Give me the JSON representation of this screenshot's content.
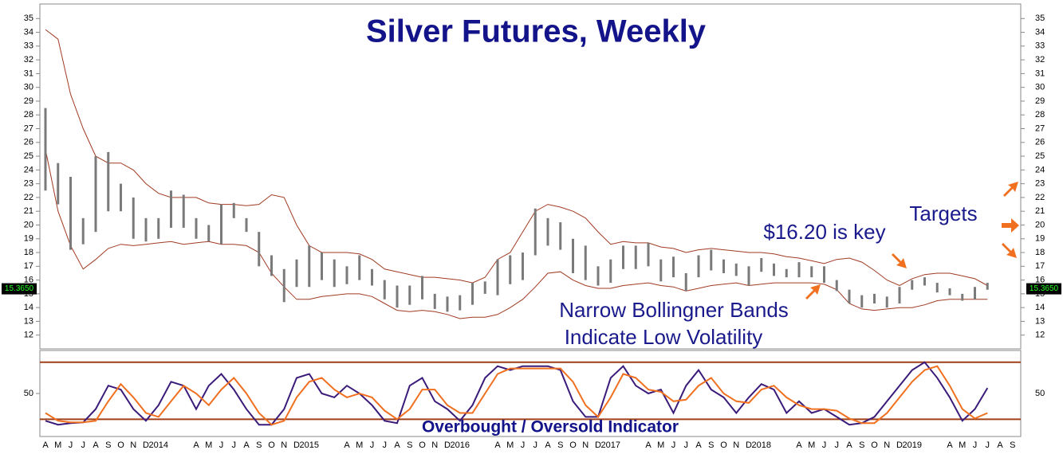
{
  "chart_data": [
    {
      "type": "ohlc",
      "title": "Silver Futures, Weekly",
      "categories": [
        "A",
        "M",
        "J",
        "J",
        "A",
        "S",
        "O",
        "N",
        "D",
        "2014",
        null,
        null,
        "A",
        "M",
        "J",
        "J",
        "A",
        "S",
        "O",
        "N",
        "D",
        "2015",
        null,
        null,
        "A",
        "M",
        "J",
        "J",
        "A",
        "S",
        "O",
        "N",
        "D",
        "2016",
        null,
        null,
        "A",
        "M",
        "J",
        "J",
        "A",
        "S",
        "O",
        "N",
        "D",
        "2017",
        null,
        null,
        "A",
        "M",
        "J",
        "J",
        "A",
        "S",
        "O",
        "N",
        "D",
        "2018",
        null,
        null,
        "A",
        "M",
        "J",
        "J",
        "A",
        "S",
        "O",
        "N",
        "D",
        "2019",
        null,
        null,
        "A",
        "M",
        "J",
        "J",
        "A",
        "S"
      ],
      "high": [
        28.5,
        24.5,
        23.5,
        20.5,
        25.0,
        25.3,
        23.0,
        22.0,
        20.5,
        20.5,
        22.5,
        22.2,
        20.5,
        20.0,
        21.5,
        21.6,
        20.5,
        19.5,
        17.8,
        16.8,
        17.5,
        18.5,
        18.0,
        17.5,
        17.0,
        17.8,
        16.8,
        16.0,
        15.6,
        15.6,
        16.3,
        15.0,
        14.8,
        14.9,
        15.8,
        15.9,
        17.5,
        17.8,
        18.0,
        21.2,
        20.5,
        20.2,
        19.0,
        18.5,
        17.0,
        17.5,
        18.5,
        18.5,
        18.7,
        17.5,
        17.7,
        16.5,
        17.8,
        18.2,
        17.5,
        17.2,
        17.0,
        17.6,
        17.2,
        16.8,
        17.3,
        17.0,
        17.0,
        16.0,
        15.3,
        14.9,
        15.0,
        14.8,
        15.5,
        16.0,
        16.2,
        15.8,
        15.4,
        15.0,
        15.5,
        15.8,
        null,
        null
      ],
      "low": [
        22.5,
        21.5,
        18.2,
        18.6,
        19.5,
        21.0,
        21.0,
        19.0,
        18.8,
        19.0,
        19.8,
        19.8,
        19.0,
        18.8,
        18.6,
        20.5,
        19.5,
        17.0,
        16.3,
        14.4,
        15.5,
        15.5,
        16.0,
        15.5,
        15.7,
        16.0,
        15.6,
        14.6,
        14.0,
        14.2,
        14.6,
        13.9,
        13.7,
        13.8,
        14.2,
        15.0,
        14.9,
        15.7,
        16.0,
        17.8,
        18.5,
        18.2,
        16.5,
        16.0,
        15.6,
        15.8,
        16.8,
        16.8,
        17.0,
        15.9,
        16.2,
        15.2,
        16.2,
        16.7,
        16.5,
        16.3,
        15.6,
        16.6,
        16.3,
        16.2,
        16.2,
        16.2,
        15.8,
        15.2,
        14.3,
        14.0,
        14.3,
        14.0,
        14.3,
        15.3,
        15.6,
        15.1,
        14.9,
        14.5,
        14.6,
        15.3,
        null,
        null
      ],
      "color": "#7a7a7a",
      "series": [
        {
          "color": "#a03a22",
          "values": [
            34.2,
            33.5,
            29.5,
            27.0,
            25.0,
            24.5,
            24.5,
            24.0,
            23.0,
            22.3,
            22.0,
            22.0,
            22.0,
            21.6,
            21.5,
            21.5,
            21.4,
            21.5,
            22.2,
            22.0,
            20.0,
            18.5,
            18.0,
            18.0,
            18.0,
            17.9,
            17.5,
            16.8,
            16.6,
            16.4,
            16.2,
            16.2,
            16.1,
            16.0,
            15.8,
            16.2,
            17.5,
            18.0,
            19.5,
            21.0,
            21.5,
            21.3,
            21.0,
            20.5,
            19.5,
            18.6,
            18.8,
            18.7,
            18.7,
            18.4,
            18.3,
            18.0,
            18.2,
            18.3,
            18.2,
            18.1,
            18.0,
            18.0,
            17.9,
            17.7,
            17.6,
            17.4,
            17.2,
            17.5,
            17.6,
            17.3,
            16.7,
            16.0,
            15.6,
            16.1,
            16.4,
            16.5,
            16.5,
            16.3,
            16.1,
            15.6,
            null,
            null
          ]
        },
        {
          "color": "#a03a22",
          "values": [
            25.5,
            21.0,
            18.5,
            16.8,
            17.5,
            18.3,
            18.6,
            18.5,
            18.6,
            18.7,
            18.8,
            18.6,
            18.7,
            18.8,
            18.6,
            18.6,
            18.5,
            18.0,
            16.5,
            15.5,
            14.6,
            14.6,
            14.8,
            14.9,
            15.0,
            15.0,
            14.8,
            14.3,
            13.8,
            13.7,
            13.8,
            13.7,
            13.5,
            13.2,
            13.3,
            13.3,
            13.5,
            14.0,
            14.6,
            15.5,
            16.5,
            16.6,
            16.0,
            15.6,
            15.4,
            15.4,
            15.6,
            15.7,
            15.8,
            15.6,
            15.5,
            15.2,
            15.4,
            15.6,
            15.7,
            15.8,
            15.6,
            15.7,
            15.8,
            15.8,
            15.8,
            15.8,
            15.7,
            15.3,
            14.3,
            13.9,
            13.8,
            13.9,
            14.0,
            14.0,
            14.2,
            14.5,
            14.6,
            14.6,
            14.6,
            14.6,
            null,
            null
          ]
        }
      ],
      "ylim": [
        11,
        36
      ],
      "yticks": [
        12,
        13,
        14,
        15,
        16,
        17,
        18,
        19,
        20,
        21,
        22,
        23,
        24,
        25,
        26,
        27,
        28,
        29,
        30,
        31,
        32,
        33,
        34,
        35
      ],
      "last_price": {
        "value": 15.365,
        "label": "15.3650"
      },
      "annotations": [
        "$16.20 is key",
        "Targets",
        "Narrow Bollingner Bands",
        "Indicate Low Volatility"
      ]
    },
    {
      "type": "line",
      "title": "Overbought / Oversold Indicator",
      "series": [
        {
          "color": "#3b1b7a",
          "values": [
            15,
            10,
            12,
            13,
            30,
            60,
            55,
            30,
            15,
            35,
            65,
            60,
            30,
            60,
            75,
            55,
            30,
            10,
            10,
            30,
            70,
            75,
            50,
            45,
            60,
            50,
            35,
            15,
            12,
            60,
            70,
            40,
            30,
            15,
            35,
            70,
            85,
            80,
            85,
            85,
            85,
            80,
            40,
            20,
            20,
            70,
            85,
            60,
            50,
            55,
            25,
            60,
            80,
            55,
            45,
            25,
            45,
            62,
            55,
            25,
            40,
            25,
            30,
            20,
            10,
            12,
            20,
            40,
            60,
            80,
            90,
            70,
            45,
            15,
            30,
            57,
            null,
            null
          ]
        },
        {
          "color": "#f07020",
          "values": [
            25,
            15,
            13,
            13,
            15,
            40,
            62,
            45,
            25,
            20,
            40,
            60,
            50,
            35,
            55,
            70,
            50,
            25,
            10,
            15,
            45,
            65,
            70,
            55,
            45,
            50,
            45,
            28,
            17,
            30,
            55,
            55,
            35,
            25,
            25,
            50,
            75,
            82,
            82,
            82,
            82,
            82,
            65,
            35,
            20,
            45,
            75,
            70,
            55,
            52,
            40,
            42,
            60,
            70,
            50,
            40,
            38,
            55,
            60,
            45,
            35,
            30,
            30,
            28,
            18,
            12,
            12,
            25,
            45,
            65,
            80,
            85,
            60,
            30,
            18,
            25,
            null,
            null
          ]
        }
      ],
      "levels": [
        90,
        17
      ],
      "level_color": "#a0401a",
      "ylim": [
        0,
        100
      ],
      "yticks": [
        50
      ]
    }
  ]
}
